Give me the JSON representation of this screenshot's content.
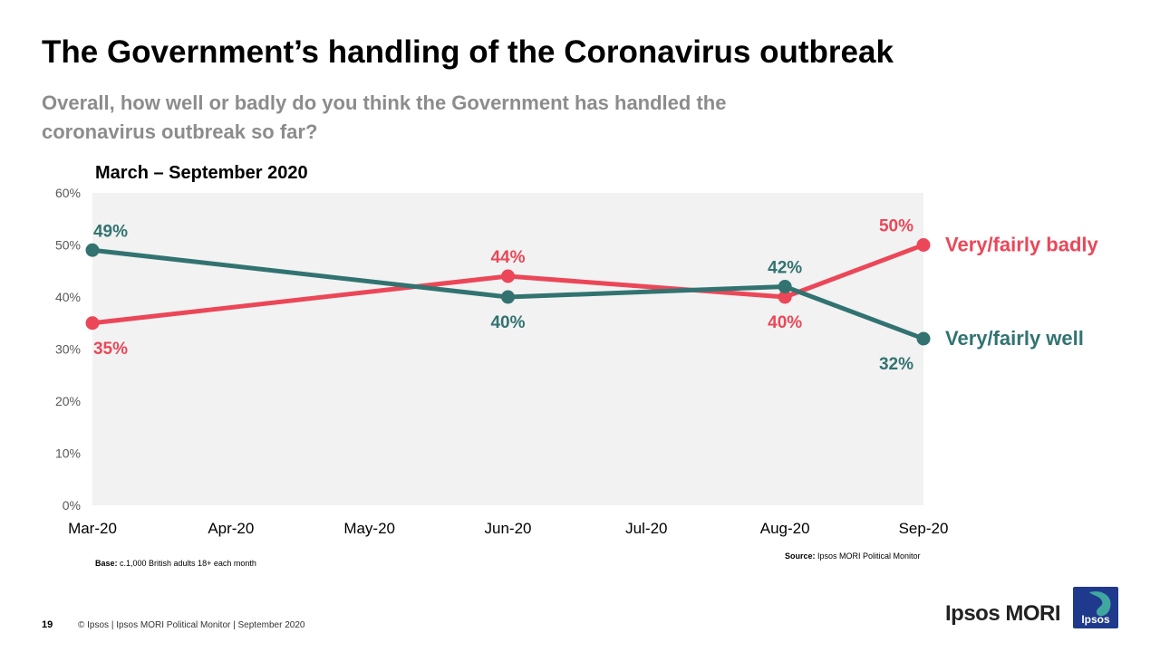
{
  "header": {
    "title": "The Government’s handling of the Coronavirus outbreak",
    "subtitle": "Overall, how well or badly do you think the Government has handled the coronavirus outbreak so far?",
    "period": "March – September 2020"
  },
  "chart_data": {
    "type": "line",
    "title": "March – September 2020",
    "categories": [
      "Mar-20",
      "Apr-20",
      "May-20",
      "Jun-20",
      "Jul-20",
      "Aug-20",
      "Sep-20"
    ],
    "y_ticks": [
      "0%",
      "10%",
      "20%",
      "30%",
      "40%",
      "50%",
      "60%"
    ],
    "ylim": [
      0,
      60
    ],
    "xlabel": "",
    "ylabel": "",
    "series": [
      {
        "name": "Very/fairly badly",
        "color": "#eb4758",
        "points": [
          {
            "x": "Mar-20",
            "y": 35,
            "label": "35%",
            "label_pos": "below"
          },
          {
            "x": "Jun-20",
            "y": 44,
            "label": "44%",
            "label_pos": "above"
          },
          {
            "x": "Aug-20",
            "y": 40,
            "label": "40%",
            "label_pos": "below"
          },
          {
            "x": "Sep-20",
            "y": 50,
            "label": "50%",
            "label_pos": "above"
          }
        ]
      },
      {
        "name": "Very/fairly well",
        "color": "#327371",
        "points": [
          {
            "x": "Mar-20",
            "y": 49,
            "label": "49%",
            "label_pos": "above"
          },
          {
            "x": "Jun-20",
            "y": 40,
            "label": "40%",
            "label_pos": "below"
          },
          {
            "x": "Aug-20",
            "y": 42,
            "label": "42%",
            "label_pos": "above"
          },
          {
            "x": "Sep-20",
            "y": 32,
            "label": "32%",
            "label_pos": "below"
          }
        ]
      }
    ],
    "plot_background": "#f2f2f2"
  },
  "notes": {
    "base_label": "Base:",
    "base_text": " c.1,000 British adults 18+ each month",
    "source_label": "Source:",
    "source_text": " Ipsos MORI Political Monitor"
  },
  "footer": {
    "page_number": "19",
    "text": "© Ipsos | Ipsos MORI Political Monitor | September 2020",
    "brand": "Ipsos MORI",
    "logo_text": "Ipsos"
  },
  "colors": {
    "logo_bg": "#1f3a8c",
    "logo_accent": "#3fa7a0"
  }
}
